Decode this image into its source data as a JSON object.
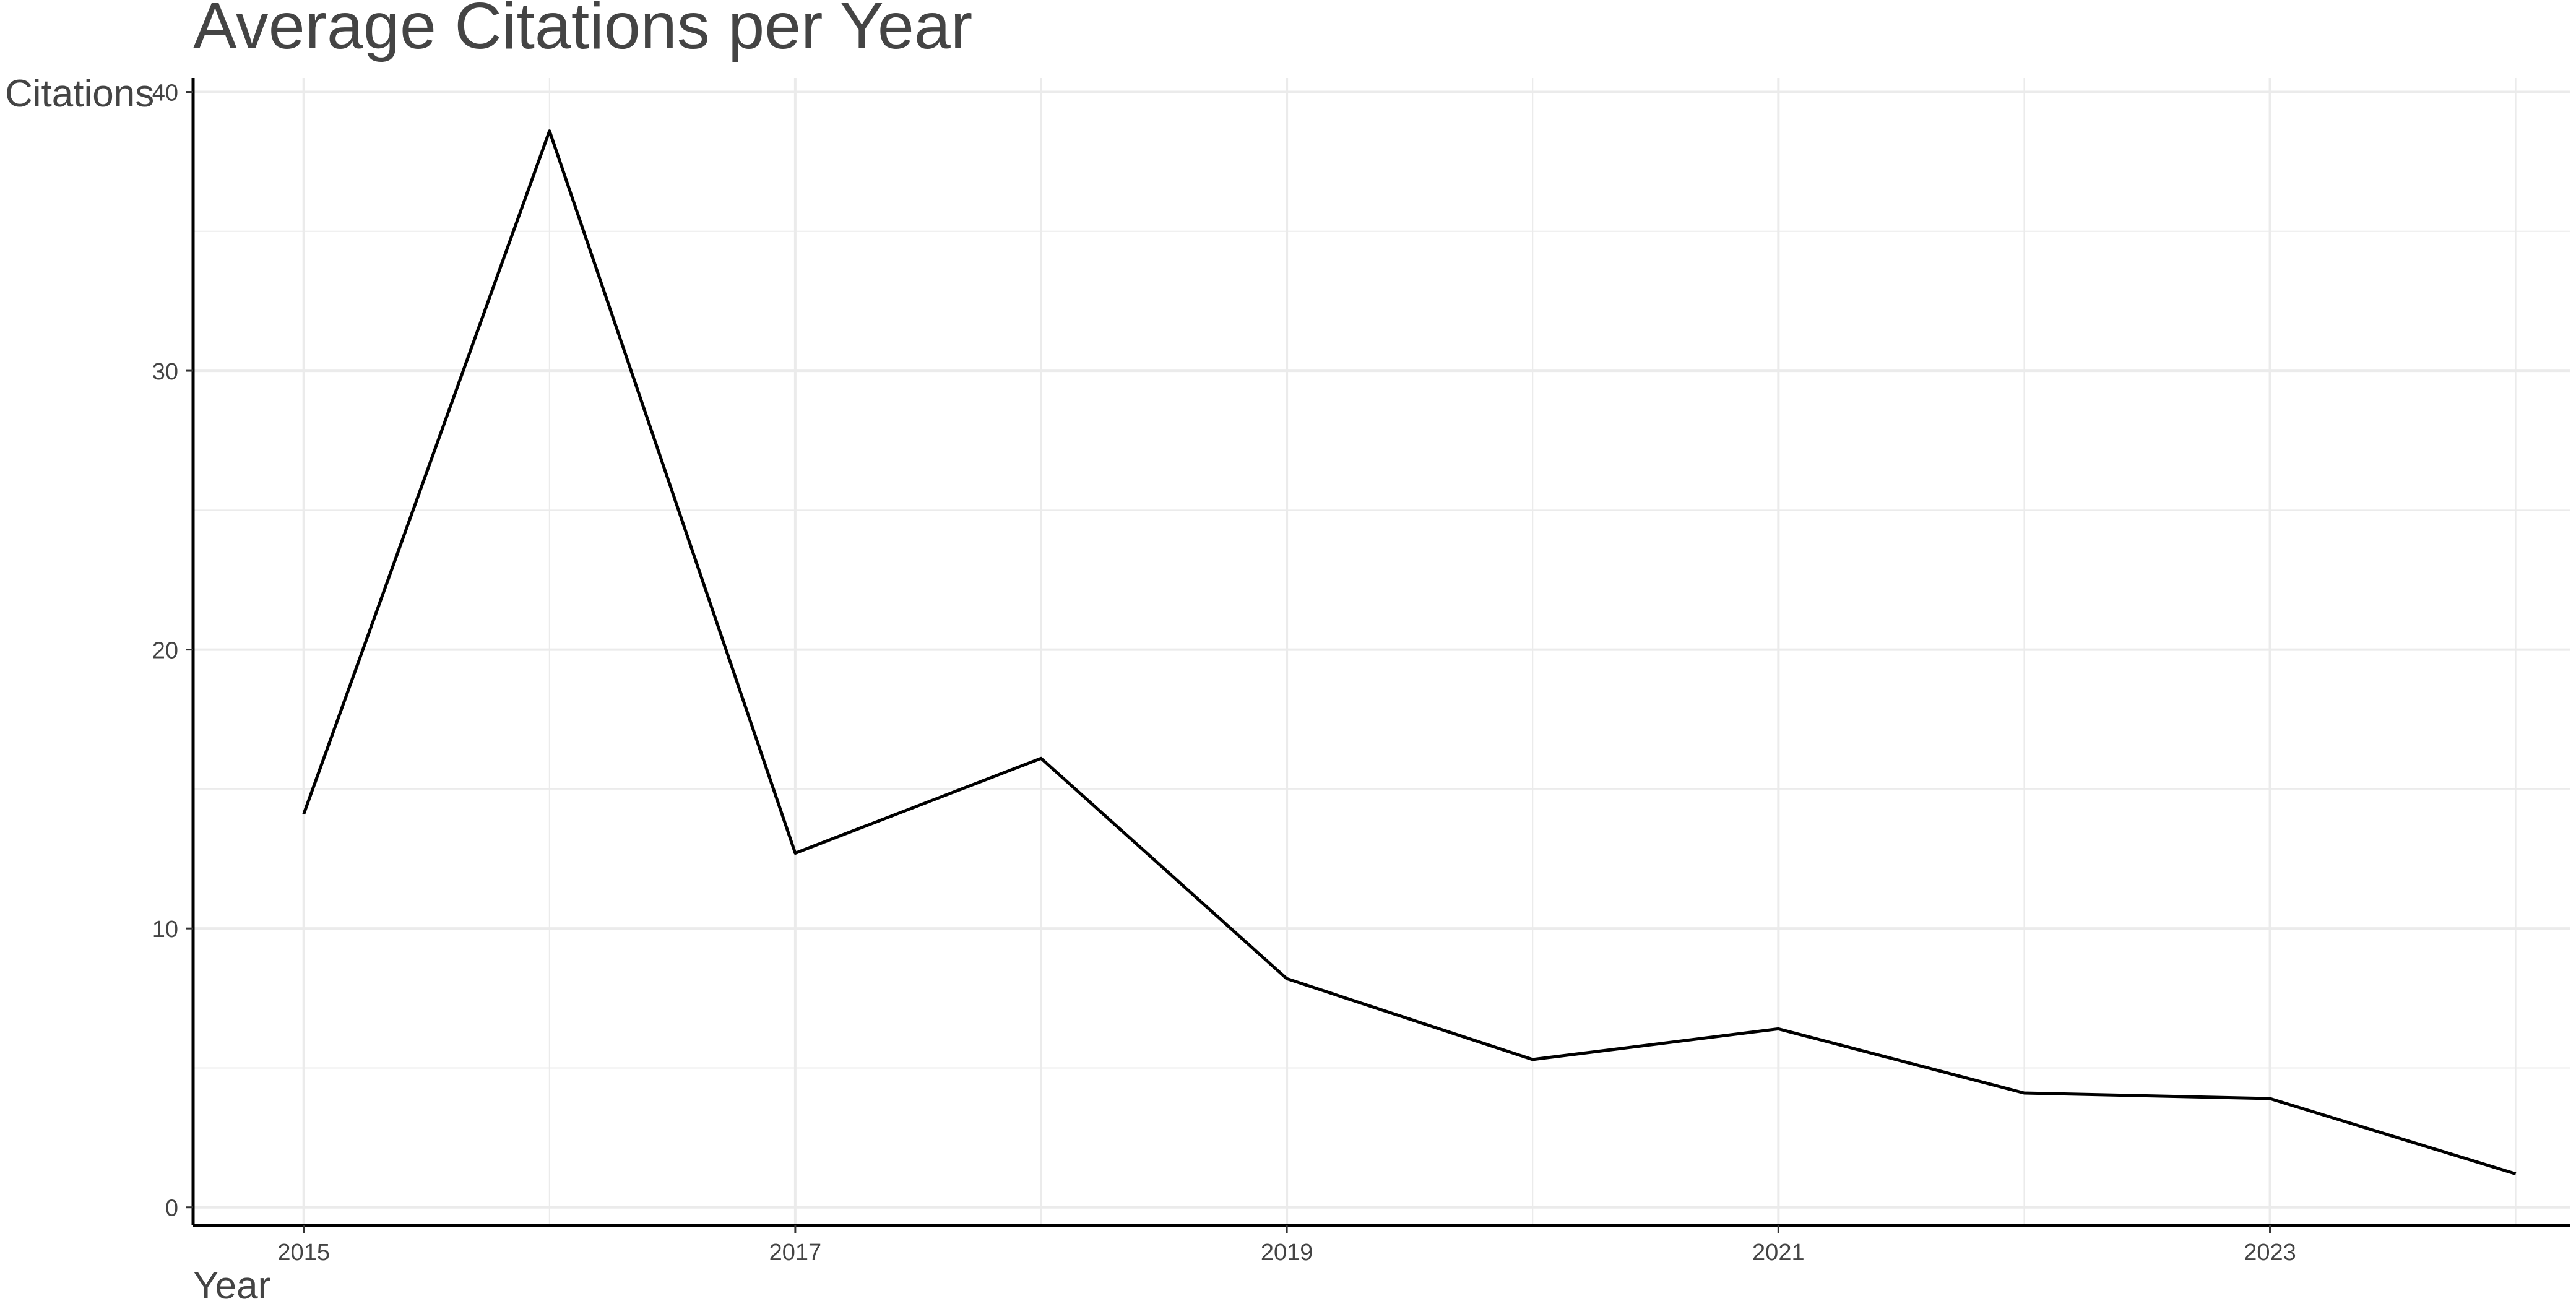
{
  "chart_data": {
    "type": "line",
    "title": "Average Citations per Year",
    "xlabel": "Year",
    "ylabel": "Citations",
    "xlim": [
      2014.55,
      2024.22
    ],
    "ylim": [
      -0.65,
      40.5
    ],
    "x_ticks": [
      2015,
      2017,
      2019,
      2021,
      2023
    ],
    "y_ticks": [
      0,
      10,
      20,
      30,
      40
    ],
    "grid": true,
    "series": [
      {
        "x": [
          2015,
          2016,
          2017,
          2018,
          2019,
          2020,
          2021,
          2022,
          2023,
          2024
        ],
        "values": [
          14.1,
          38.6,
          12.7,
          16.1,
          8.2,
          5.3,
          6.4,
          4.1,
          3.9,
          1.2
        ]
      }
    ],
    "colors": {
      "line": "#000000",
      "grid": "#ebebeb",
      "axis": "#000000",
      "text": "#444444"
    }
  }
}
